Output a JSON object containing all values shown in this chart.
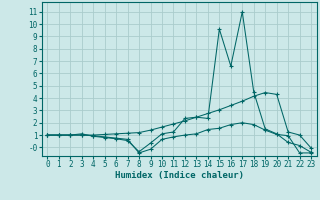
{
  "xlabel": "Humidex (Indice chaleur)",
  "bg_color": "#cce8e8",
  "line_color": "#006666",
  "grid_color": "#aacccc",
  "xlim": [
    -0.5,
    23.5
  ],
  "ylim": [
    -0.7,
    11.8
  ],
  "xticks": [
    0,
    1,
    2,
    3,
    4,
    5,
    6,
    7,
    8,
    9,
    10,
    11,
    12,
    13,
    14,
    15,
    16,
    17,
    18,
    19,
    20,
    21,
    22,
    23
  ],
  "yticks": [
    0,
    1,
    2,
    3,
    4,
    5,
    6,
    7,
    8,
    9,
    10,
    11
  ],
  "ytick_labels": [
    "-0",
    "1",
    "2",
    "3",
    "4",
    "5",
    "6",
    "7",
    "8",
    "9",
    "10",
    "11"
  ],
  "line1_x": [
    0,
    1,
    2,
    3,
    4,
    5,
    6,
    7,
    8,
    9,
    10,
    11,
    12,
    13,
    14,
    15,
    16,
    17,
    18,
    19,
    20,
    21,
    22,
    23
  ],
  "line1_y": [
    1.0,
    1.0,
    1.0,
    1.1,
    0.9,
    0.8,
    0.7,
    0.55,
    -0.35,
    0.35,
    1.1,
    1.25,
    2.35,
    2.45,
    2.35,
    9.6,
    6.6,
    11.0,
    4.5,
    1.5,
    1.1,
    0.4,
    0.15,
    -0.4
  ],
  "line2_x": [
    0,
    1,
    2,
    3,
    4,
    5,
    6,
    7,
    8,
    9,
    10,
    11,
    12,
    13,
    14,
    15,
    16,
    17,
    18,
    19,
    20,
    21,
    22,
    23
  ],
  "line2_y": [
    1.0,
    1.0,
    1.0,
    1.0,
    1.0,
    1.05,
    1.1,
    1.15,
    1.2,
    1.4,
    1.65,
    1.9,
    2.15,
    2.45,
    2.75,
    3.05,
    3.4,
    3.75,
    4.15,
    4.45,
    4.3,
    1.25,
    1.0,
    -0.05
  ],
  "line3_x": [
    0,
    1,
    2,
    3,
    4,
    5,
    6,
    7,
    8,
    9,
    10,
    11,
    12,
    13,
    14,
    15,
    16,
    17,
    18,
    19,
    20,
    21,
    22,
    23
  ],
  "line3_y": [
    1.0,
    1.0,
    1.0,
    1.0,
    0.95,
    0.85,
    0.75,
    0.65,
    -0.45,
    -0.15,
    0.65,
    0.85,
    1.0,
    1.1,
    1.45,
    1.55,
    1.85,
    2.0,
    1.85,
    1.4,
    1.05,
    0.95,
    -0.45,
    -0.45
  ]
}
